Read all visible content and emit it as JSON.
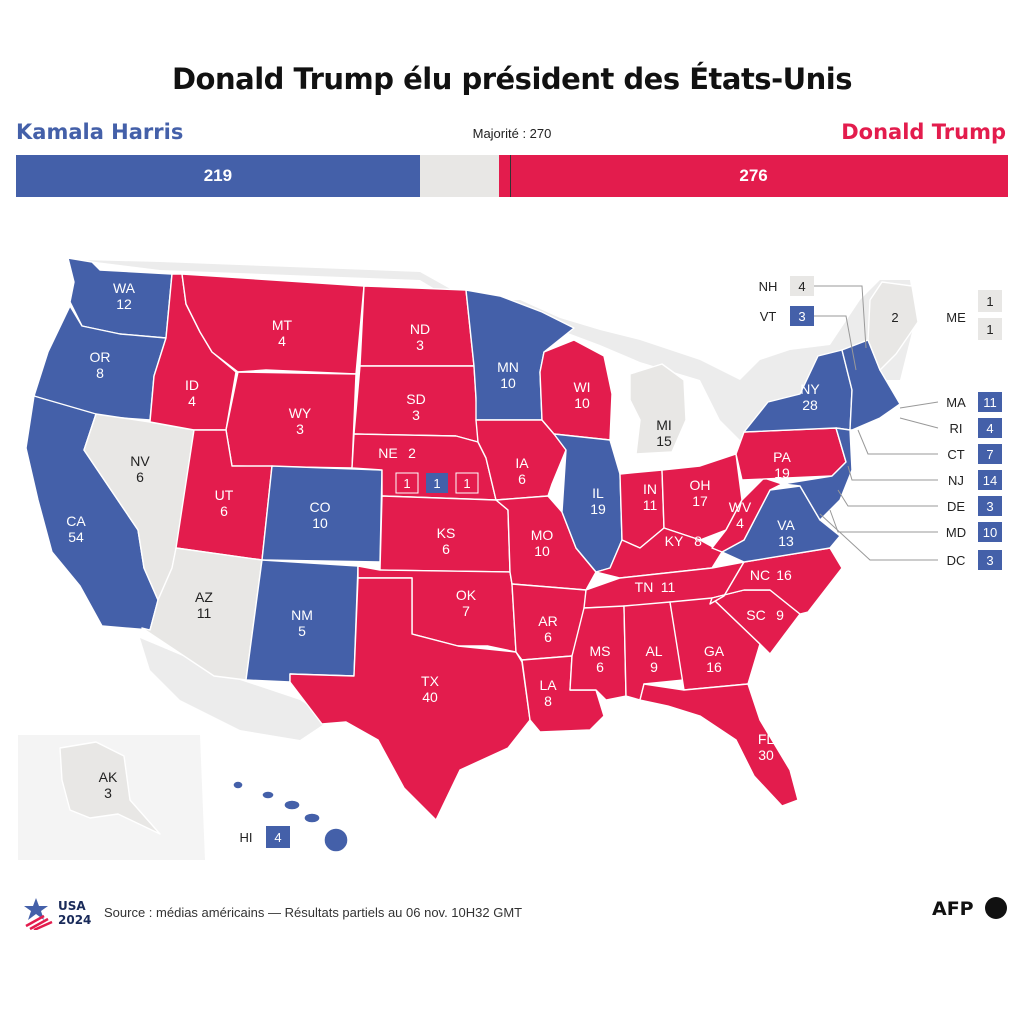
{
  "title": "Donald Trump élu président des États-Unis",
  "candidates": {
    "left": {
      "name": "Kamala Harris",
      "votes": "219",
      "count": 219,
      "color": "#4460a9"
    },
    "right": {
      "name": "Donald Trump",
      "votes": "276",
      "count": 276,
      "color": "#e31c4d"
    }
  },
  "majority_label": "Majorité : 270",
  "majority": 270,
  "total_votes": 538,
  "colors": {
    "dem": "#4460a9",
    "rep": "#e31c4d",
    "undecided": "#e8e7e5"
  },
  "states": [
    {
      "id": "WA",
      "label": "WA",
      "ev": "12",
      "party": "dem"
    },
    {
      "id": "OR",
      "label": "OR",
      "ev": "8",
      "party": "dem"
    },
    {
      "id": "CA",
      "label": "CA",
      "ev": "54",
      "party": "dem"
    },
    {
      "id": "NV",
      "label": "NV",
      "ev": "6",
      "party": "undecided"
    },
    {
      "id": "ID",
      "label": "ID",
      "ev": "4",
      "party": "rep"
    },
    {
      "id": "MT",
      "label": "MT",
      "ev": "4",
      "party": "rep"
    },
    {
      "id": "WY",
      "label": "WY",
      "ev": "3",
      "party": "rep"
    },
    {
      "id": "UT",
      "label": "UT",
      "ev": "6",
      "party": "rep"
    },
    {
      "id": "AZ",
      "label": "AZ",
      "ev": "11",
      "party": "undecided"
    },
    {
      "id": "CO",
      "label": "CO",
      "ev": "10",
      "party": "dem"
    },
    {
      "id": "NM",
      "label": "NM",
      "ev": "5",
      "party": "dem"
    },
    {
      "id": "ND",
      "label": "ND",
      "ev": "3",
      "party": "rep"
    },
    {
      "id": "SD",
      "label": "SD",
      "ev": "3",
      "party": "rep"
    },
    {
      "id": "NE",
      "label": "NE",
      "ev": "2",
      "party": "rep"
    },
    {
      "id": "KS",
      "label": "KS",
      "ev": "6",
      "party": "rep"
    },
    {
      "id": "OK",
      "label": "OK",
      "ev": "7",
      "party": "rep"
    },
    {
      "id": "TX",
      "label": "TX",
      "ev": "40",
      "party": "rep"
    },
    {
      "id": "MN",
      "label": "MN",
      "ev": "10",
      "party": "dem"
    },
    {
      "id": "IA",
      "label": "IA",
      "ev": "6",
      "party": "rep"
    },
    {
      "id": "MO",
      "label": "MO",
      "ev": "10",
      "party": "rep"
    },
    {
      "id": "AR",
      "label": "AR",
      "ev": "6",
      "party": "rep"
    },
    {
      "id": "LA",
      "label": "LA",
      "ev": "8",
      "party": "rep"
    },
    {
      "id": "WI",
      "label": "WI",
      "ev": "10",
      "party": "rep"
    },
    {
      "id": "IL",
      "label": "IL",
      "ev": "19",
      "party": "dem"
    },
    {
      "id": "MI",
      "label": "MI",
      "ev": "15",
      "party": "undecided"
    },
    {
      "id": "IN",
      "label": "IN",
      "ev": "11",
      "party": "rep"
    },
    {
      "id": "OH",
      "label": "OH",
      "ev": "17",
      "party": "rep"
    },
    {
      "id": "KY",
      "label": "KY",
      "ev": "8",
      "party": "rep"
    },
    {
      "id": "TN",
      "label": "TN",
      "ev": "11",
      "party": "rep"
    },
    {
      "id": "MS",
      "label": "MS",
      "ev": "6",
      "party": "rep"
    },
    {
      "id": "AL",
      "label": "AL",
      "ev": "9",
      "party": "rep"
    },
    {
      "id": "GA",
      "label": "GA",
      "ev": "16",
      "party": "rep"
    },
    {
      "id": "FL",
      "label": "FL",
      "ev": "30",
      "party": "rep"
    },
    {
      "id": "SC",
      "label": "SC",
      "ev": "9",
      "party": "rep"
    },
    {
      "id": "NC",
      "label": "NC",
      "ev": "16",
      "party": "rep"
    },
    {
      "id": "VA",
      "label": "VA",
      "ev": "13",
      "party": "dem"
    },
    {
      "id": "WV",
      "label": "WV",
      "ev": "4",
      "party": "rep"
    },
    {
      "id": "PA",
      "label": "PA",
      "ev": "19",
      "party": "rep"
    },
    {
      "id": "NY",
      "label": "NY",
      "ev": "28",
      "party": "dem"
    },
    {
      "id": "AK",
      "label": "AK",
      "ev": "3",
      "party": "undecided"
    },
    {
      "id": "HI",
      "label": "HI",
      "ev": "4",
      "party": "dem"
    }
  ],
  "nebraska_districts": [
    {
      "ev": "1",
      "party": "rep"
    },
    {
      "ev": "1",
      "party": "dem"
    },
    {
      "ev": "1",
      "party": "rep"
    }
  ],
  "maine": {
    "label": "ME",
    "statewide": "2",
    "districts": [
      {
        "ev": "1",
        "party": "undecided"
      },
      {
        "ev": "1",
        "party": "undecided"
      }
    ]
  },
  "northeast_callouts": [
    {
      "label": "NH",
      "ev": "4",
      "party": "undecided"
    },
    {
      "label": "VT",
      "ev": "3",
      "party": "dem"
    },
    {
      "label": "MA",
      "ev": "11",
      "party": "dem"
    },
    {
      "label": "RI",
      "ev": "4",
      "party": "dem"
    },
    {
      "label": "CT",
      "ev": "7",
      "party": "dem"
    },
    {
      "label": "NJ",
      "ev": "14",
      "party": "dem"
    },
    {
      "label": "DE",
      "ev": "3",
      "party": "dem"
    },
    {
      "label": "MD",
      "ev": "10",
      "party": "dem"
    },
    {
      "label": "DC",
      "ev": "3",
      "party": "dem"
    }
  ],
  "footer": {
    "logo_line1": "USA",
    "logo_line2": "2024",
    "source": "Source : médias américains — Résultats partiels au 06 nov. 10H32 GMT",
    "agency": "AFP"
  }
}
